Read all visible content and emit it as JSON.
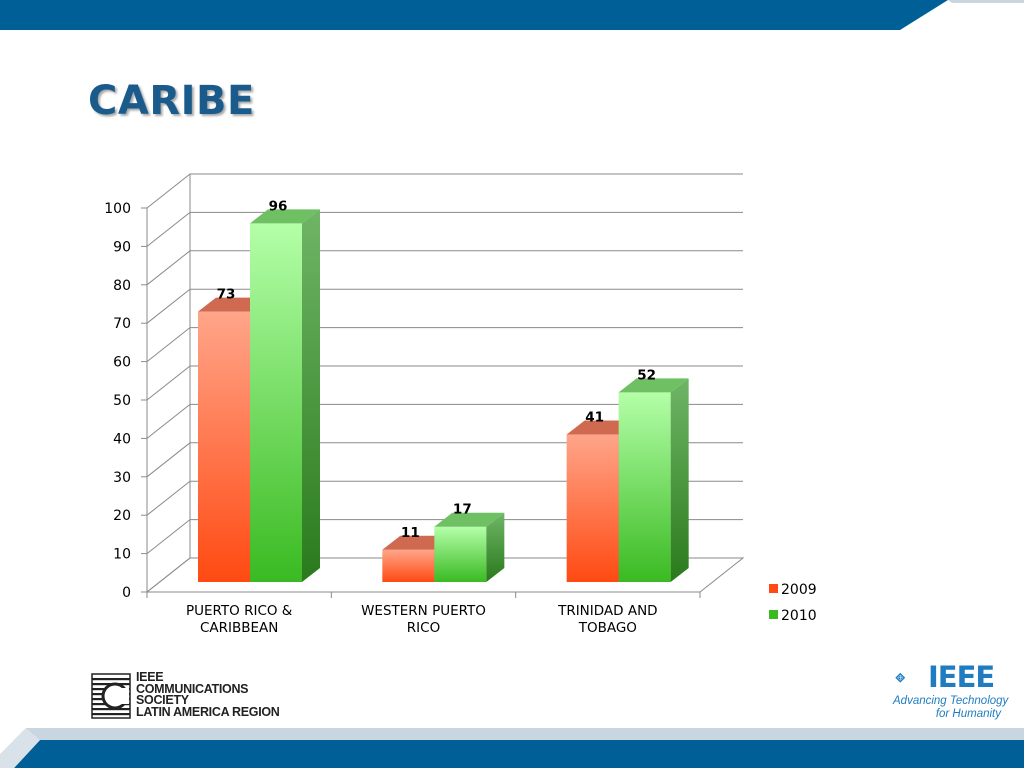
{
  "slide": {
    "title": "CARIBE"
  },
  "theme": {
    "band_color": "#005f96",
    "band_light": "#c9d6df",
    "title_color": "#1a5b8c",
    "series_colors": {
      "2009": {
        "top": "#ffa58a",
        "bottom": "#ff4a12",
        "side": "#b83a18",
        "cap": "#cf6a50"
      },
      "2010": {
        "top": "#b4ffa8",
        "bottom": "#3aba22",
        "side": "#2f8a22",
        "cap": "#6fc063"
      }
    }
  },
  "chart_data": {
    "type": "bar",
    "categories": [
      [
        "PUERTO RICO &",
        "CARIBBEAN"
      ],
      [
        "WESTERN PUERTO",
        "RICO"
      ],
      [
        "TRINIDAD AND",
        "TOBAGO"
      ]
    ],
    "series": [
      {
        "name": "2009",
        "values": [
          73,
          11,
          41
        ]
      },
      {
        "name": "2010",
        "values": [
          96,
          17,
          52
        ]
      }
    ],
    "y_ticks": [
      0,
      10,
      20,
      30,
      40,
      50,
      60,
      70,
      80,
      90,
      100
    ],
    "ylim": [
      0,
      100
    ],
    "grid": true,
    "three_d": true,
    "data_labels": true,
    "legend_position": "right"
  },
  "footer": {
    "comsoc_lines": [
      "IEEE",
      "COMMUNICATIONS",
      "SOCIETY",
      "LATIN AMERICA REGION"
    ],
    "ieee_wordmark": "IEEE",
    "ieee_tagline": [
      "Advancing Technology",
      "for Humanity"
    ]
  }
}
